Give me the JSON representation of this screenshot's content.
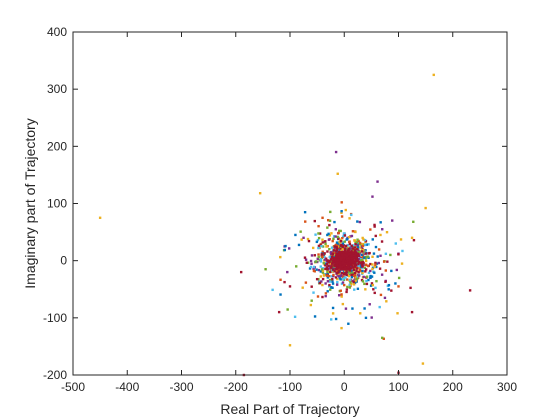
{
  "chart_data": {
    "type": "scatter",
    "title": "",
    "xlabel": "Real Part of Trajectory",
    "ylabel": "Imaginary part of Trajectory",
    "xlim": [
      -500,
      300
    ],
    "ylim": [
      -200,
      400
    ],
    "xticks": [
      -500,
      -400,
      -300,
      -200,
      -100,
      0,
      100,
      200,
      300
    ],
    "yticks": [
      -200,
      -100,
      0,
      100,
      200,
      300,
      400
    ],
    "xtick_labels": [
      "-500",
      "-400",
      "-300",
      "-200",
      "-100",
      "0",
      "100",
      "200",
      "300"
    ],
    "ytick_labels": [
      "-200",
      "-100",
      "0",
      "100",
      "200",
      "300",
      "400"
    ],
    "grid": false,
    "colors": [
      "#0072BD",
      "#D95319",
      "#EDB120",
      "#7E2F8E",
      "#77AC30",
      "#4DBEEE",
      "#A2142F"
    ],
    "outliers": [
      {
        "x": -450,
        "y": 75,
        "color": "#EDB120"
      },
      {
        "x": 165,
        "y": 325,
        "color": "#EDB120"
      },
      {
        "x": -155,
        "y": 118,
        "color": "#EDB120"
      },
      {
        "x": -15,
        "y": 190,
        "color": "#7E2F8E"
      },
      {
        "x": -12,
        "y": 152,
        "color": "#EDB120"
      },
      {
        "x": 52,
        "y": 112,
        "color": "#7E2F8E"
      },
      {
        "x": 150,
        "y": 92,
        "color": "#EDB120"
      },
      {
        "x": 232,
        "y": -52,
        "color": "#A2142F"
      },
      {
        "x": -190,
        "y": -20,
        "color": "#A2142F"
      },
      {
        "x": -185,
        "y": -200,
        "color": "#A2142F"
      },
      {
        "x": 100,
        "y": -196,
        "color": "#A2142F"
      },
      {
        "x": 145,
        "y": -180,
        "color": "#EDB120"
      },
      {
        "x": -100,
        "y": -148,
        "color": "#EDB120"
      },
      {
        "x": 125,
        "y": -90,
        "color": "#A2142F"
      },
      {
        "x": 70,
        "y": -135,
        "color": "#77AC30"
      },
      {
        "x": -120,
        "y": -90,
        "color": "#A2142F"
      },
      {
        "x": 125,
        "y": 40,
        "color": "#EDB120"
      },
      {
        "x": -145,
        "y": -15,
        "color": "#77AC30"
      },
      {
        "x": -90,
        "y": 45,
        "color": "#0072BD"
      },
      {
        "x": -75,
        "y": 40,
        "color": "#7E2F8E"
      },
      {
        "x": 95,
        "y": 30,
        "color": "#4DBEEE"
      },
      {
        "x": -5,
        "y": -118,
        "color": "#EDB120"
      },
      {
        "x": -15,
        "y": -102,
        "color": "#0072BD"
      },
      {
        "x": 40,
        "y": -100,
        "color": "#0072BD"
      },
      {
        "x": -60,
        "y": -70,
        "color": "#77AC30"
      },
      {
        "x": 75,
        "y": -65,
        "color": "#7E2F8E"
      },
      {
        "x": -100,
        "y": -45,
        "color": "#A2142F"
      },
      {
        "x": 100,
        "y": -45,
        "color": "#D95319"
      },
      {
        "x": 70,
        "y": 55,
        "color": "#7E2F8E"
      },
      {
        "x": -40,
        "y": 75,
        "color": "#D95319"
      },
      {
        "x": -105,
        "y": -20,
        "color": "#7E2F8E"
      },
      {
        "x": 85,
        "y": 10,
        "color": "#77AC30"
      }
    ],
    "cluster": {
      "center": [
        0,
        0
      ],
      "count": 900,
      "spread_x": 25,
      "spread_y": 22
    }
  }
}
